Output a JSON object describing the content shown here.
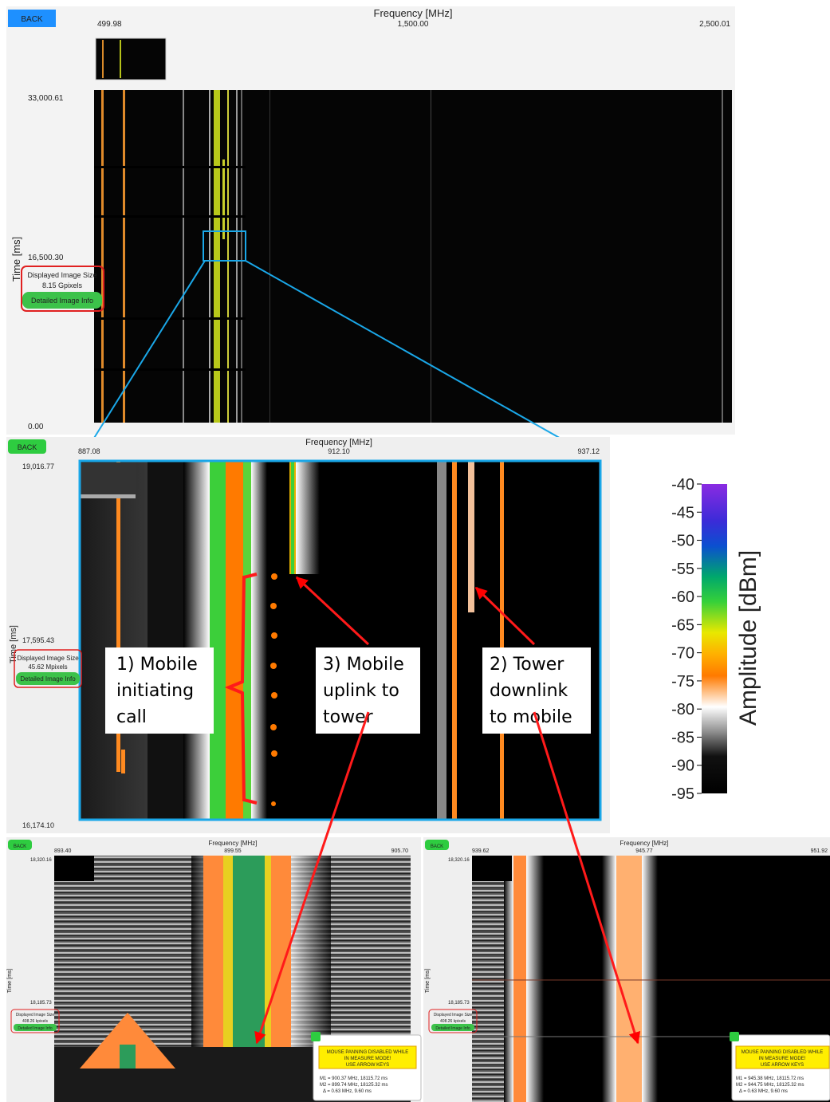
{
  "panels": [
    {
      "back": "BACK",
      "x_axis_label": "Frequency [MHz]",
      "x_ticks": [
        "499.98",
        "1,500.00",
        "2,500.01"
      ],
      "y_axis_label": "Time [ms]",
      "y_ticks": [
        "33,000.61",
        "16,500.30",
        "0.00"
      ],
      "image_size_label": "Displayed Image Size",
      "image_size": "8.15 Gpixels",
      "info_button": "Detailed Image Info"
    },
    {
      "back": "BACK",
      "x_axis_label": "Frequency [MHz]",
      "x_ticks": [
        "887.08",
        "912.10",
        "937.12"
      ],
      "y_axis_label": "Time [ms]",
      "y_ticks": [
        "19,016.77",
        "17,595.43",
        "16,174.10"
      ],
      "image_size_label": "Displayed Image Size",
      "image_size": "45.62 Mpixels",
      "info_button": "Detailed Image Info"
    },
    {
      "back": "BACK",
      "x_axis_label": "Frequency [MHz]",
      "x_ticks": [
        "893.40",
        "899.55",
        "905.70"
      ],
      "y_axis_label": "Time [ms]",
      "y_ticks": [
        "18,320.16",
        "18,185.73"
      ],
      "image_size_label": "Displayed Image Size",
      "image_size": "408.26 kpixels",
      "info_button": "Detailed Image Info"
    },
    {
      "back": "BACK",
      "x_axis_label": "Frequency [MHz]",
      "x_ticks": [
        "939.62",
        "945.77",
        "951.92"
      ],
      "y_axis_label": "Time [ms]",
      "y_ticks": [
        "18,320.16",
        "18,185.73"
      ],
      "image_size_label": "Displayed Image Size",
      "image_size": "408.26 kpixels",
      "info_button": "Detailed Image Info"
    }
  ],
  "annotations": [
    [
      "1) Mobile",
      "initiating",
      "call"
    ],
    [
      "3) Mobile",
      "uplink to",
      "tower"
    ],
    [
      "2) Tower",
      "downlink",
      "to mobile"
    ]
  ],
  "colorbar": {
    "label": "Amplitude [dBm]",
    "ticks": [
      -40,
      -45,
      -50,
      -55,
      -60,
      -65,
      -70,
      -75,
      -80,
      -85,
      -90,
      -95
    ]
  },
  "measure_popups": [
    {
      "warning": [
        "MOUSE PANNING DISABLED WHILE",
        "IN MEASURE MODE!",
        "USE ARROW KEYS"
      ],
      "markers": [
        "M1 = 900.37 MHz, 18115.72 ms",
        "M2 = 899.74 MHz, 18125.32 ms",
        "Δ = 0.63 MHz, 9.60 ms"
      ]
    },
    {
      "warning": [
        "MOUSE PANNING DISABLED WHILE",
        "IN MEASURE MODE!",
        "USE ARROW KEYS"
      ],
      "markers": [
        "M1 = 945.38 MHz, 18115.72 ms",
        "M2 = 944.75 MHz, 18125.32 ms",
        "Δ = 0.63 MHz, 9.60 ms"
      ]
    }
  ]
}
